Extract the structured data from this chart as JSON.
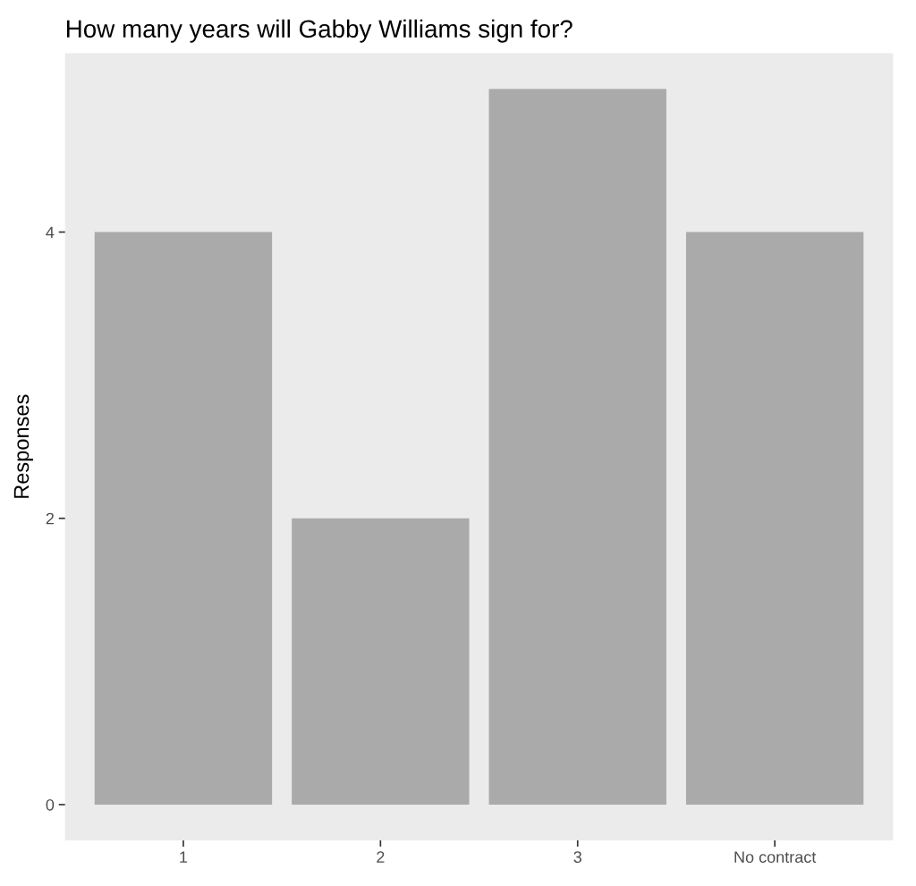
{
  "chart_data": {
    "type": "bar",
    "title": "How many years will Gabby Williams sign for?",
    "ylabel": "Responses",
    "categories": [
      "1",
      "2",
      "3",
      "No contract"
    ],
    "values": [
      4,
      2,
      5,
      4
    ],
    "color": "#aaaaaa",
    "ylim": [
      -0.25,
      5.25
    ],
    "yticks": [
      0,
      2,
      4
    ],
    "grid": false
  }
}
